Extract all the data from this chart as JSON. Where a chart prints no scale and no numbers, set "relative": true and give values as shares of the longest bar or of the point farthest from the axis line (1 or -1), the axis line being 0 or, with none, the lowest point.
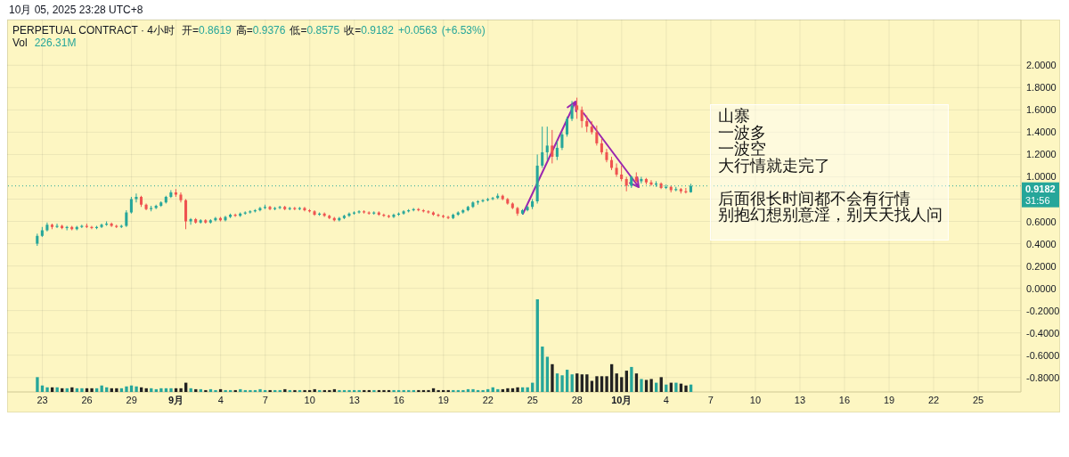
{
  "chart_data": [
    {
      "type": "candlestick",
      "title": "PERPETUAL CONTRACT · 4小时",
      "subtitle": "开=0.8619 高=0.9376 低=0.8575 收=0.9182 +0.0563 (+6.53%)",
      "x": [
        "2025-08-22T16:00",
        "2025-08-23T00:00",
        "2025-08-23T08:00",
        "2025-08-23T16:00",
        "2025-08-24T00:00",
        "2025-08-24T08:00",
        "2025-08-24T16:00",
        "2025-08-25T00:00",
        "2025-08-25T08:00",
        "2025-08-25T16:00",
        "2025-08-26T00:00",
        "2025-08-26T08:00",
        "2025-08-26T16:00",
        "2025-08-27T00:00",
        "2025-08-27T08:00",
        "2025-08-27T16:00",
        "2025-08-28T00:00",
        "2025-08-28T08:00",
        "2025-08-28T16:00",
        "2025-08-29T00:00",
        "2025-08-29T08:00",
        "2025-08-29T16:00",
        "2025-08-30T00:00",
        "2025-08-30T08:00",
        "2025-08-30T16:00",
        "2025-08-31T00:00",
        "2025-08-31T08:00",
        "2025-08-31T16:00",
        "2025-09-01T00:00",
        "2025-09-01T08:00",
        "2025-09-01T16:00",
        "2025-09-02T00:00",
        "2025-09-02T08:00",
        "2025-09-02T16:00",
        "2025-09-03T00:00",
        "2025-09-03T08:00",
        "2025-09-03T16:00",
        "2025-09-04T00:00",
        "2025-09-04T08:00",
        "2025-09-04T16:00",
        "2025-09-05T00:00",
        "2025-09-05T08:00",
        "2025-09-05T16:00",
        "2025-09-06T00:00",
        "2025-09-06T08:00",
        "2025-09-06T16:00",
        "2025-09-07T00:00",
        "2025-09-07T08:00",
        "2025-09-07T16:00",
        "2025-09-08T00:00",
        "2025-09-08T08:00",
        "2025-09-08T16:00",
        "2025-09-09T00:00",
        "2025-09-09T08:00",
        "2025-09-09T16:00",
        "2025-09-10T00:00",
        "2025-09-10T08:00",
        "2025-09-10T16:00",
        "2025-09-11T00:00",
        "2025-09-11T08:00",
        "2025-09-11T16:00",
        "2025-09-12T00:00",
        "2025-09-12T08:00",
        "2025-09-12T16:00",
        "2025-09-13T00:00",
        "2025-09-13T08:00",
        "2025-09-13T16:00",
        "2025-09-14T00:00",
        "2025-09-14T08:00",
        "2025-09-14T16:00",
        "2025-09-15T00:00",
        "2025-09-15T08:00",
        "2025-09-15T16:00",
        "2025-09-16T00:00",
        "2025-09-16T08:00",
        "2025-09-16T16:00",
        "2025-09-17T00:00",
        "2025-09-17T08:00",
        "2025-09-17T16:00",
        "2025-09-18T00:00",
        "2025-09-18T08:00",
        "2025-09-18T16:00",
        "2025-09-19T00:00",
        "2025-09-19T08:00",
        "2025-09-19T16:00",
        "2025-09-20T00:00",
        "2025-09-20T08:00",
        "2025-09-20T16:00",
        "2025-09-21T00:00",
        "2025-09-21T08:00",
        "2025-09-21T16:00",
        "2025-09-22T00:00",
        "2025-09-22T08:00",
        "2025-09-22T16:00",
        "2025-09-23T00:00",
        "2025-09-23T08:00",
        "2025-09-23T16:00",
        "2025-09-24T00:00",
        "2025-09-24T08:00",
        "2025-09-24T16:00",
        "2025-09-25T00:00",
        "2025-09-25T08:00",
        "2025-09-25T16:00",
        "2025-09-26T00:00",
        "2025-09-26T08:00",
        "2025-09-26T16:00",
        "2025-09-27T00:00",
        "2025-09-27T08:00",
        "2025-09-27T16:00",
        "2025-09-28T00:00",
        "2025-09-28T08:00",
        "2025-09-28T16:00",
        "2025-09-29T00:00",
        "2025-09-29T08:00",
        "2025-09-29T16:00",
        "2025-09-30T00:00",
        "2025-09-30T08:00",
        "2025-09-30T16:00",
        "2025-10-01T00:00",
        "2025-10-01T08:00",
        "2025-10-01T16:00",
        "2025-10-02T00:00",
        "2025-10-02T08:00",
        "2025-10-02T16:00",
        "2025-10-03T00:00",
        "2025-10-03T08:00",
        "2025-10-03T16:00",
        "2025-10-04T00:00",
        "2025-10-04T08:00",
        "2025-10-04T16:00",
        "2025-10-05T00:00",
        "2025-10-05T08:00",
        "2025-10-05T16:00"
      ],
      "ohlc": [
        [
          0.4,
          0.49,
          0.38,
          0.47
        ],
        [
          0.47,
          0.55,
          0.46,
          0.52
        ],
        [
          0.52,
          0.59,
          0.51,
          0.57
        ],
        [
          0.57,
          0.58,
          0.53,
          0.55
        ],
        [
          0.55,
          0.58,
          0.54,
          0.56
        ],
        [
          0.56,
          0.57,
          0.53,
          0.54
        ],
        [
          0.54,
          0.56,
          0.52,
          0.55
        ],
        [
          0.55,
          0.56,
          0.52,
          0.53
        ],
        [
          0.53,
          0.56,
          0.52,
          0.55
        ],
        [
          0.55,
          0.57,
          0.54,
          0.56
        ],
        [
          0.56,
          0.58,
          0.54,
          0.55
        ],
        [
          0.55,
          0.56,
          0.53,
          0.54
        ],
        [
          0.54,
          0.56,
          0.53,
          0.55
        ],
        [
          0.55,
          0.58,
          0.54,
          0.57
        ],
        [
          0.57,
          0.6,
          0.56,
          0.58
        ],
        [
          0.58,
          0.59,
          0.55,
          0.56
        ],
        [
          0.56,
          0.57,
          0.54,
          0.55
        ],
        [
          0.55,
          0.57,
          0.54,
          0.56
        ],
        [
          0.56,
          0.7,
          0.55,
          0.68
        ],
        [
          0.68,
          0.82,
          0.67,
          0.8
        ],
        [
          0.8,
          0.85,
          0.77,
          0.82
        ],
        [
          0.82,
          0.83,
          0.73,
          0.75
        ],
        [
          0.75,
          0.76,
          0.7,
          0.71
        ],
        [
          0.71,
          0.74,
          0.69,
          0.72
        ],
        [
          0.72,
          0.75,
          0.71,
          0.74
        ],
        [
          0.74,
          0.78,
          0.73,
          0.77
        ],
        [
          0.77,
          0.83,
          0.76,
          0.82
        ],
        [
          0.82,
          0.88,
          0.81,
          0.86
        ],
        [
          0.86,
          0.89,
          0.82,
          0.84
        ],
        [
          0.84,
          0.86,
          0.77,
          0.79
        ],
        [
          0.79,
          0.8,
          0.53,
          0.6
        ],
        [
          0.6,
          0.63,
          0.57,
          0.62
        ],
        [
          0.62,
          0.63,
          0.58,
          0.59
        ],
        [
          0.59,
          0.62,
          0.58,
          0.61
        ],
        [
          0.61,
          0.62,
          0.58,
          0.59
        ],
        [
          0.59,
          0.62,
          0.58,
          0.61
        ],
        [
          0.61,
          0.64,
          0.6,
          0.63
        ],
        [
          0.63,
          0.64,
          0.6,
          0.61
        ],
        [
          0.61,
          0.65,
          0.6,
          0.64
        ],
        [
          0.64,
          0.67,
          0.63,
          0.66
        ],
        [
          0.66,
          0.67,
          0.64,
          0.65
        ],
        [
          0.65,
          0.68,
          0.64,
          0.67
        ],
        [
          0.67,
          0.69,
          0.66,
          0.68
        ],
        [
          0.68,
          0.7,
          0.67,
          0.69
        ],
        [
          0.69,
          0.71,
          0.68,
          0.7
        ],
        [
          0.7,
          0.73,
          0.69,
          0.72
        ],
        [
          0.72,
          0.75,
          0.71,
          0.73
        ],
        [
          0.73,
          0.74,
          0.7,
          0.71
        ],
        [
          0.71,
          0.73,
          0.7,
          0.72
        ],
        [
          0.72,
          0.74,
          0.71,
          0.73
        ],
        [
          0.73,
          0.74,
          0.7,
          0.71
        ],
        [
          0.71,
          0.73,
          0.7,
          0.72
        ],
        [
          0.72,
          0.73,
          0.7,
          0.71
        ],
        [
          0.71,
          0.73,
          0.7,
          0.72
        ],
        [
          0.72,
          0.73,
          0.69,
          0.7
        ],
        [
          0.7,
          0.71,
          0.68,
          0.69
        ],
        [
          0.69,
          0.7,
          0.65,
          0.66
        ],
        [
          0.66,
          0.68,
          0.65,
          0.67
        ],
        [
          0.67,
          0.68,
          0.64,
          0.65
        ],
        [
          0.65,
          0.66,
          0.62,
          0.63
        ],
        [
          0.63,
          0.64,
          0.6,
          0.61
        ],
        [
          0.61,
          0.64,
          0.6,
          0.63
        ],
        [
          0.63,
          0.66,
          0.62,
          0.65
        ],
        [
          0.65,
          0.68,
          0.64,
          0.67
        ],
        [
          0.67,
          0.69,
          0.66,
          0.68
        ],
        [
          0.68,
          0.7,
          0.67,
          0.69
        ],
        [
          0.69,
          0.7,
          0.67,
          0.68
        ],
        [
          0.68,
          0.69,
          0.66,
          0.67
        ],
        [
          0.67,
          0.69,
          0.66,
          0.68
        ],
        [
          0.68,
          0.69,
          0.65,
          0.66
        ],
        [
          0.66,
          0.67,
          0.64,
          0.65
        ],
        [
          0.65,
          0.66,
          0.63,
          0.64
        ],
        [
          0.64,
          0.67,
          0.63,
          0.66
        ],
        [
          0.66,
          0.68,
          0.65,
          0.67
        ],
        [
          0.67,
          0.7,
          0.66,
          0.69
        ],
        [
          0.69,
          0.71,
          0.68,
          0.7
        ],
        [
          0.7,
          0.72,
          0.69,
          0.71
        ],
        [
          0.71,
          0.72,
          0.69,
          0.7
        ],
        [
          0.7,
          0.71,
          0.68,
          0.69
        ],
        [
          0.69,
          0.7,
          0.67,
          0.68
        ],
        [
          0.68,
          0.69,
          0.65,
          0.66
        ],
        [
          0.66,
          0.67,
          0.64,
          0.65
        ],
        [
          0.65,
          0.66,
          0.63,
          0.64
        ],
        [
          0.64,
          0.65,
          0.62,
          0.63
        ],
        [
          0.63,
          0.67,
          0.62,
          0.66
        ],
        [
          0.66,
          0.69,
          0.65,
          0.68
        ],
        [
          0.68,
          0.71,
          0.67,
          0.7
        ],
        [
          0.7,
          0.74,
          0.69,
          0.73
        ],
        [
          0.73,
          0.78,
          0.72,
          0.77
        ],
        [
          0.77,
          0.79,
          0.75,
          0.78
        ],
        [
          0.78,
          0.8,
          0.77,
          0.79
        ],
        [
          0.79,
          0.81,
          0.78,
          0.8
        ],
        [
          0.8,
          0.82,
          0.79,
          0.81
        ],
        [
          0.81,
          0.85,
          0.8,
          0.83
        ],
        [
          0.83,
          0.84,
          0.79,
          0.8
        ],
        [
          0.8,
          0.81,
          0.75,
          0.76
        ],
        [
          0.76,
          0.77,
          0.71,
          0.72
        ],
        [
          0.72,
          0.73,
          0.65,
          0.67
        ],
        [
          0.67,
          0.71,
          0.66,
          0.7
        ],
        [
          0.7,
          0.74,
          0.69,
          0.73
        ],
        [
          0.73,
          0.8,
          0.71,
          0.78
        ],
        [
          0.78,
          1.2,
          0.76,
          1.1
        ],
        [
          1.1,
          1.45,
          1.08,
          1.22
        ],
        [
          1.22,
          1.45,
          1.15,
          1.28
        ],
        [
          1.28,
          1.42,
          1.12,
          1.18
        ],
        [
          1.18,
          1.32,
          1.15,
          1.26
        ],
        [
          1.26,
          1.4,
          1.24,
          1.38
        ],
        [
          1.38,
          1.54,
          1.36,
          1.52
        ],
        [
          1.52,
          1.68,
          1.5,
          1.64
        ],
        [
          1.64,
          1.71,
          1.52,
          1.6
        ],
        [
          1.6,
          1.63,
          1.44,
          1.5
        ],
        [
          1.5,
          1.55,
          1.4,
          1.45
        ],
        [
          1.45,
          1.5,
          1.38,
          1.4
        ],
        [
          1.4,
          1.46,
          1.28,
          1.3
        ],
        [
          1.3,
          1.34,
          1.2,
          1.22
        ],
        [
          1.22,
          1.25,
          1.13,
          1.15
        ],
        [
          1.15,
          1.18,
          1.06,
          1.08
        ],
        [
          1.08,
          1.12,
          1.0,
          1.02
        ],
        [
          1.02,
          1.1,
          0.96,
          0.98
        ],
        [
          0.98,
          1.0,
          0.87,
          0.92
        ],
        [
          0.92,
          1.01,
          0.9,
          1.0
        ],
        [
          1.0,
          1.04,
          0.95,
          0.96
        ],
        [
          0.96,
          1.0,
          0.94,
          0.98
        ],
        [
          0.98,
          0.99,
          0.93,
          0.95
        ],
        [
          0.95,
          0.97,
          0.92,
          0.93
        ],
        [
          0.93,
          0.96,
          0.91,
          0.94
        ],
        [
          0.94,
          0.95,
          0.89,
          0.9
        ],
        [
          0.9,
          0.93,
          0.89,
          0.91
        ],
        [
          0.91,
          0.92,
          0.86,
          0.88
        ],
        [
          0.88,
          0.91,
          0.87,
          0.89
        ],
        [
          0.89,
          0.9,
          0.85,
          0.87
        ],
        [
          0.87,
          0.9,
          0.85,
          0.86
        ],
        [
          0.8619,
          0.9376,
          0.8575,
          0.9182
        ]
      ],
      "colors": [
        "#26a69a",
        "#26a69a",
        "#26a69a",
        "#ef5350",
        "#26a69a",
        "#ef5350",
        "#26a69a",
        "#ef5350",
        "#26a69a",
        "#26a69a",
        "#ef5350",
        "#ef5350",
        "#26a69a",
        "#26a69a",
        "#26a69a",
        "#ef5350",
        "#ef5350",
        "#26a69a",
        "#26a69a",
        "#26a69a",
        "#26a69a",
        "#ef5350",
        "#ef5350",
        "#26a69a",
        "#26a69a",
        "#26a69a",
        "#26a69a",
        "#26a69a",
        "#ef5350",
        "#ef5350",
        "#ef5350",
        "#26a69a",
        "#ef5350",
        "#26a69a",
        "#ef5350",
        "#26a69a",
        "#26a69a",
        "#ef5350",
        "#26a69a",
        "#26a69a",
        "#ef5350",
        "#26a69a",
        "#26a69a",
        "#26a69a",
        "#26a69a",
        "#26a69a",
        "#26a69a",
        "#ef5350",
        "#26a69a",
        "#26a69a",
        "#ef5350",
        "#26a69a",
        "#ef5350",
        "#26a69a",
        "#ef5350",
        "#ef5350",
        "#ef5350",
        "#26a69a",
        "#ef5350",
        "#ef5350",
        "#ef5350",
        "#26a69a",
        "#26a69a",
        "#26a69a",
        "#26a69a",
        "#26a69a",
        "#ef5350",
        "#ef5350",
        "#26a69a",
        "#ef5350",
        "#ef5350",
        "#ef5350",
        "#26a69a",
        "#26a69a",
        "#26a69a",
        "#26a69a",
        "#26a69a",
        "#ef5350",
        "#ef5350",
        "#ef5350",
        "#ef5350",
        "#ef5350",
        "#ef5350",
        "#ef5350",
        "#26a69a",
        "#26a69a",
        "#26a69a",
        "#26a69a",
        "#26a69a",
        "#26a69a",
        "#26a69a",
        "#26a69a",
        "#26a69a",
        "#26a69a",
        "#ef5350",
        "#ef5350",
        "#ef5350",
        "#ef5350",
        "#26a69a",
        "#26a69a",
        "#26a69a",
        "#26a69a",
        "#26a69a",
        "#26a69a",
        "#ef5350",
        "#26a69a",
        "#26a69a",
        "#26a69a",
        "#26a69a",
        "#ef5350",
        "#ef5350",
        "#ef5350",
        "#ef5350",
        "#ef5350",
        "#ef5350",
        "#ef5350",
        "#ef5350",
        "#ef5350",
        "#ef5350",
        "#ef5350",
        "#26a69a",
        "#ef5350",
        "#26a69a",
        "#ef5350",
        "#ef5350",
        "#26a69a",
        "#ef5350",
        "#26a69a",
        "#ef5350",
        "#26a69a",
        "#ef5350",
        "#ef5350",
        "#26a69a"
      ],
      "xlim": [
        "2025-08-20T15:00",
        "2025-10-27T21:00"
      ],
      "xticks": [
        {
          "value": "2025-08-23",
          "label": "23"
        },
        {
          "value": "2025-08-26",
          "label": "26"
        },
        {
          "value": "2025-08-29",
          "label": "29"
        },
        {
          "value": "2025-09-01",
          "label": "9月"
        },
        {
          "value": "2025-09-04",
          "label": "4"
        },
        {
          "value": "2025-09-07",
          "label": "7"
        },
        {
          "value": "2025-09-10",
          "label": "10"
        },
        {
          "value": "2025-09-13",
          "label": "13"
        },
        {
          "value": "2025-09-16",
          "label": "16"
        },
        {
          "value": "2025-09-19",
          "label": "19"
        },
        {
          "value": "2025-09-22",
          "label": "22"
        },
        {
          "value": "2025-09-25",
          "label": "25"
        },
        {
          "value": "2025-09-28",
          "label": "28"
        },
        {
          "value": "2025-10-01",
          "label": "10月"
        },
        {
          "value": "2025-10-04",
          "label": "4"
        },
        {
          "value": "2025-10-07",
          "label": "7"
        },
        {
          "value": "2025-10-10",
          "label": "10"
        },
        {
          "value": "2025-10-13",
          "label": "13"
        },
        {
          "value": "2025-10-16",
          "label": "16"
        },
        {
          "value": "2025-10-19",
          "label": "19"
        },
        {
          "value": "2025-10-22",
          "label": "22"
        },
        {
          "value": "2025-10-25",
          "label": "25"
        }
      ],
      "ylim": [
        -0.93,
        2.41
      ],
      "yticks": [
        {
          "value": -0.8,
          "label": "-0.8000"
        },
        {
          "value": -0.6,
          "label": "-0.6000"
        },
        {
          "value": -0.4,
          "label": "-0.4000"
        },
        {
          "value": -0.2,
          "label": "-0.2000"
        },
        {
          "value": 0,
          "label": "0.0000"
        },
        {
          "value": 0.2,
          "label": "0.2000"
        },
        {
          "value": 0.4,
          "label": "0.4000"
        },
        {
          "value": 0.6,
          "label": "0.6000"
        },
        {
          "value": 0.8,
          "label": null
        },
        {
          "value": 1.0,
          "label": "1.0000"
        },
        {
          "value": 1.2,
          "label": "1.2000"
        },
        {
          "value": 1.4,
          "label": "1.4000"
        },
        {
          "value": 1.6,
          "label": "1.6000"
        },
        {
          "value": 1.8,
          "label": "1.8000"
        },
        {
          "value": 2.0,
          "label": "2.0000"
        }
      ],
      "grid": true,
      "ref_lines": [
        {
          "axis": "y",
          "value": 0.9182,
          "label": "0.9182\n31:56",
          "color": "#26a69a",
          "line_style": "dotted"
        }
      ],
      "annotations": [
        "10月 05, 2025 23:28 UTC+8",
        "山寨",
        "一波多",
        "一波空",
        "大行情就走完了",
        "后面很长时间都不会有行情",
        "别抱幻想别意淫，别天天找人问"
      ]
    },
    {
      "type": "bar",
      "title": "Vol",
      "annotations": [
        "226.31M"
      ],
      "relative": true,
      "tick_labels": false,
      "xlim": [
        "2025-08-20T15:00",
        "2025-10-27T21:00"
      ],
      "x": [
        "2025-08-22T16:00",
        "2025-08-23T00:00",
        "2025-08-23T08:00",
        "2025-08-23T16:00",
        "2025-08-24T00:00",
        "2025-08-24T08:00",
        "2025-08-24T16:00",
        "2025-08-25T00:00",
        "2025-08-25T08:00",
        "2025-08-25T16:00",
        "2025-08-26T00:00",
        "2025-08-26T08:00",
        "2025-08-26T16:00",
        "2025-08-27T00:00",
        "2025-08-27T08:00",
        "2025-08-27T16:00",
        "2025-08-28T00:00",
        "2025-08-28T08:00",
        "2025-08-28T16:00",
        "2025-08-29T00:00",
        "2025-08-29T08:00",
        "2025-08-29T16:00",
        "2025-08-30T00:00",
        "2025-08-30T08:00",
        "2025-08-30T16:00",
        "2025-08-31T00:00",
        "2025-08-31T08:00",
        "2025-08-31T16:00",
        "2025-09-01T00:00",
        "2025-09-01T08:00",
        "2025-09-01T16:00",
        "2025-09-02T00:00",
        "2025-09-02T08:00",
        "2025-09-02T16:00",
        "2025-09-03T00:00",
        "2025-09-03T08:00",
        "2025-09-03T16:00",
        "2025-09-04T00:00",
        "2025-09-04T08:00",
        "2025-09-04T16:00",
        "2025-09-05T00:00",
        "2025-09-05T08:00",
        "2025-09-05T16:00",
        "2025-09-06T00:00",
        "2025-09-06T08:00",
        "2025-09-06T16:00",
        "2025-09-07T00:00",
        "2025-09-07T08:00",
        "2025-09-07T16:00",
        "2025-09-08T00:00",
        "2025-09-08T08:00",
        "2025-09-08T16:00",
        "2025-09-09T00:00",
        "2025-09-09T08:00",
        "2025-09-09T16:00",
        "2025-09-10T00:00",
        "2025-09-10T08:00",
        "2025-09-10T16:00",
        "2025-09-11T00:00",
        "2025-09-11T08:00",
        "2025-09-11T16:00",
        "2025-09-12T00:00",
        "2025-09-12T08:00",
        "2025-09-12T16:00",
        "2025-09-13T00:00",
        "2025-09-13T08:00",
        "2025-09-13T16:00",
        "2025-09-14T00:00",
        "2025-09-14T08:00",
        "2025-09-14T16:00",
        "2025-09-15T00:00",
        "2025-09-15T08:00",
        "2025-09-15T16:00",
        "2025-09-16T00:00",
        "2025-09-16T08:00",
        "2025-09-16T16:00",
        "2025-09-17T00:00",
        "2025-09-17T08:00",
        "2025-09-17T16:00",
        "2025-09-18T00:00",
        "2025-09-18T08:00",
        "2025-09-18T16:00",
        "2025-09-19T00:00",
        "2025-09-19T08:00",
        "2025-09-19T16:00",
        "2025-09-20T00:00",
        "2025-09-20T08:00",
        "2025-09-20T16:00",
        "2025-09-21T00:00",
        "2025-09-21T08:00",
        "2025-09-21T16:00",
        "2025-09-22T00:00",
        "2025-09-22T08:00",
        "2025-09-22T16:00",
        "2025-09-23T00:00",
        "2025-09-23T08:00",
        "2025-09-23T16:00",
        "2025-09-24T00:00",
        "2025-09-24T08:00",
        "2025-09-24T16:00",
        "2025-09-25T00:00",
        "2025-09-25T08:00",
        "2025-09-25T16:00",
        "2025-09-26T00:00",
        "2025-09-26T08:00",
        "2025-09-26T16:00",
        "2025-09-27T00:00",
        "2025-09-27T08:00",
        "2025-09-27T16:00",
        "2025-09-28T00:00",
        "2025-09-28T08:00",
        "2025-09-28T16:00",
        "2025-09-29T00:00",
        "2025-09-29T08:00",
        "2025-09-29T16:00",
        "2025-09-30T00:00",
        "2025-09-30T08:00",
        "2025-09-30T16:00",
        "2025-10-01T00:00",
        "2025-10-01T08:00",
        "2025-10-01T16:00",
        "2025-10-02T00:00",
        "2025-10-02T08:00",
        "2025-10-02T16:00",
        "2025-10-03T00:00",
        "2025-10-03T08:00",
        "2025-10-03T16:00",
        "2025-10-04T00:00",
        "2025-10-04T08:00",
        "2025-10-04T16:00",
        "2025-10-05T00:00",
        "2025-10-05T08:00",
        "2025-10-05T16:00"
      ],
      "values": [
        0.16,
        0.07,
        0.05,
        0.05,
        0.05,
        0.04,
        0.04,
        0.05,
        0.04,
        0.04,
        0.04,
        0.04,
        0.04,
        0.07,
        0.05,
        0.04,
        0.04,
        0.04,
        0.06,
        0.07,
        0.06,
        0.05,
        0.04,
        0.04,
        0.03,
        0.04,
        0.04,
        0.04,
        0.04,
        0.04,
        0.1,
        0.04,
        0.03,
        0.03,
        0.02,
        0.03,
        0.02,
        0.03,
        0.02,
        0.02,
        0.02,
        0.03,
        0.02,
        0.02,
        0.02,
        0.03,
        0.02,
        0.02,
        0.02,
        0.02,
        0.03,
        0.02,
        0.02,
        0.02,
        0.02,
        0.02,
        0.03,
        0.02,
        0.02,
        0.02,
        0.03,
        0.02,
        0.02,
        0.02,
        0.02,
        0.02,
        0.02,
        0.02,
        0.02,
        0.02,
        0.02,
        0.02,
        0.02,
        0.02,
        0.02,
        0.02,
        0.02,
        0.02,
        0.02,
        0.02,
        0.04,
        0.02,
        0.02,
        0.02,
        0.02,
        0.02,
        0.02,
        0.03,
        0.03,
        0.02,
        0.02,
        0.03,
        0.05,
        0.03,
        0.03,
        0.04,
        0.04,
        0.05,
        0.05,
        0.05,
        0.1,
        1.0,
        0.49,
        0.38,
        0.3,
        0.2,
        0.18,
        0.24,
        0.19,
        0.2,
        0.19,
        0.19,
        0.12,
        0.17,
        0.17,
        0.17,
        0.3,
        0.2,
        0.16,
        0.23,
        0.27,
        0.2,
        0.14,
        0.13,
        0.14,
        0.1,
        0.16,
        0.08,
        0.1,
        0.1,
        0.09,
        0.07,
        0.08
      ],
      "colors": [
        "#26a69a",
        "#26a69a",
        "#26a69a",
        "#222222",
        "#26a69a",
        "#222222",
        "#26a69a",
        "#222222",
        "#26a69a",
        "#26a69a",
        "#222222",
        "#222222",
        "#26a69a",
        "#26a69a",
        "#26a69a",
        "#222222",
        "#222222",
        "#26a69a",
        "#26a69a",
        "#26a69a",
        "#26a69a",
        "#222222",
        "#222222",
        "#26a69a",
        "#26a69a",
        "#26a69a",
        "#26a69a",
        "#26a69a",
        "#222222",
        "#222222",
        "#222222",
        "#26a69a",
        "#222222",
        "#26a69a",
        "#222222",
        "#26a69a",
        "#26a69a",
        "#222222",
        "#26a69a",
        "#26a69a",
        "#222222",
        "#26a69a",
        "#26a69a",
        "#26a69a",
        "#26a69a",
        "#26a69a",
        "#26a69a",
        "#222222",
        "#26a69a",
        "#26a69a",
        "#222222",
        "#26a69a",
        "#222222",
        "#26a69a",
        "#222222",
        "#222222",
        "#222222",
        "#26a69a",
        "#222222",
        "#222222",
        "#222222",
        "#26a69a",
        "#26a69a",
        "#26a69a",
        "#26a69a",
        "#26a69a",
        "#222222",
        "#222222",
        "#26a69a",
        "#222222",
        "#222222",
        "#222222",
        "#26a69a",
        "#26a69a",
        "#26a69a",
        "#26a69a",
        "#26a69a",
        "#222222",
        "#222222",
        "#222222",
        "#222222",
        "#222222",
        "#222222",
        "#222222",
        "#26a69a",
        "#26a69a",
        "#26a69a",
        "#26a69a",
        "#26a69a",
        "#26a69a",
        "#26a69a",
        "#26a69a",
        "#26a69a",
        "#26a69a",
        "#222222",
        "#222222",
        "#222222",
        "#222222",
        "#26a69a",
        "#26a69a",
        "#26a69a",
        "#26a69a",
        "#26a69a",
        "#26a69a",
        "#222222",
        "#26a69a",
        "#26a69a",
        "#26a69a",
        "#26a69a",
        "#222222",
        "#222222",
        "#222222",
        "#222222",
        "#222222",
        "#222222",
        "#222222",
        "#222222",
        "#222222",
        "#222222",
        "#222222",
        "#26a69a",
        "#222222",
        "#26a69a",
        "#222222",
        "#222222",
        "#26a69a",
        "#222222",
        "#26a69a",
        "#222222",
        "#26a69a",
        "#222222",
        "#222222",
        "#26a69a"
      ]
    }
  ]
}
